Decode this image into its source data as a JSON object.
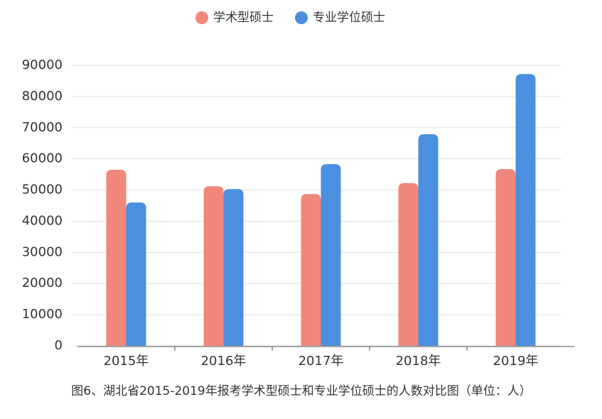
{
  "chart_data": {
    "type": "bar",
    "caption": "图6、湖北省2015-2019年报考学术型硕士和专业学位硕士的人数对比图（单位：人）",
    "categories": [
      "2015年",
      "2016年",
      "2017年",
      "2018年",
      "2019年"
    ],
    "series": [
      {
        "name": "学术型硕士",
        "color": "#f0877a",
        "values": [
          56500,
          51200,
          48700,
          52200,
          56700
        ]
      },
      {
        "name": "专业学位硕士",
        "color": "#4a8fe0",
        "values": [
          46000,
          50300,
          58300,
          67900,
          87200
        ]
      }
    ],
    "ylim": [
      0,
      90000
    ],
    "yticks": [
      0,
      10000,
      20000,
      30000,
      40000,
      50000,
      60000,
      70000,
      80000,
      90000
    ],
    "grid": true,
    "legend": "top"
  }
}
